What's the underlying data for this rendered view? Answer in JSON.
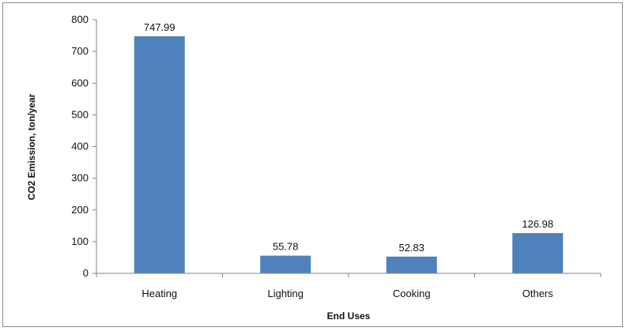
{
  "chart_data": {
    "type": "bar",
    "categories": [
      "Heating",
      "Lighting",
      "Cooking",
      "Others"
    ],
    "values": [
      747.99,
      55.78,
      52.83,
      126.98
    ],
    "data_labels": [
      "747.99",
      "55.78",
      "52.83",
      "126.98"
    ],
    "title": "",
    "xlabel": "End Uses",
    "ylabel": "CO2 Emission, ton/year",
    "ylim": [
      0,
      800
    ],
    "yticks": [
      0,
      100,
      200,
      300,
      400,
      500,
      600,
      700,
      800
    ],
    "grid": false,
    "legend": "none",
    "bar_color": "#4f81bd"
  }
}
